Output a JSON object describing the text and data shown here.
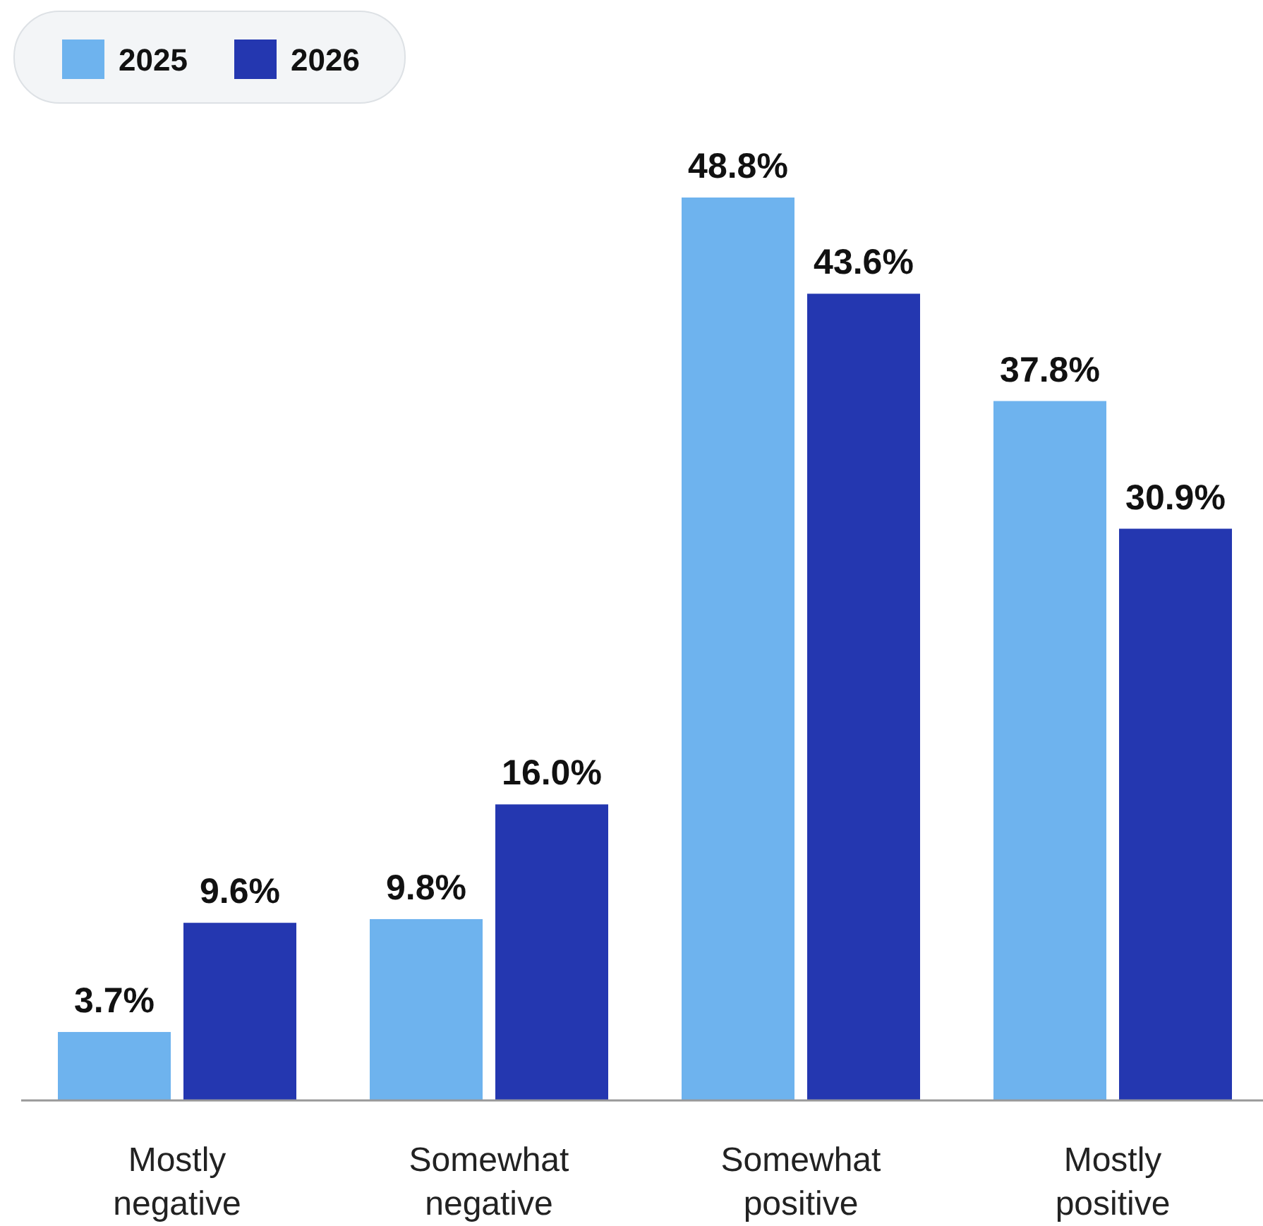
{
  "chart_data": {
    "type": "bar",
    "categories": [
      "Mostly negative",
      "Somewhat negative",
      "Somewhat positive",
      "Mostly positive"
    ],
    "series": [
      {
        "name": "2025",
        "color": "#6eb3ee",
        "values": [
          3.7,
          9.8,
          48.8,
          37.8
        ],
        "value_labels": [
          "3.7%",
          "9.8%",
          "48.8%",
          "37.8%"
        ]
      },
      {
        "name": "2026",
        "color": "#2437b0",
        "values": [
          9.6,
          16.0,
          43.6,
          30.9
        ],
        "value_labels": [
          "9.6%",
          "16.0%",
          "43.6%",
          "30.9%"
        ]
      }
    ],
    "legend": "top left",
    "grid": false
  }
}
